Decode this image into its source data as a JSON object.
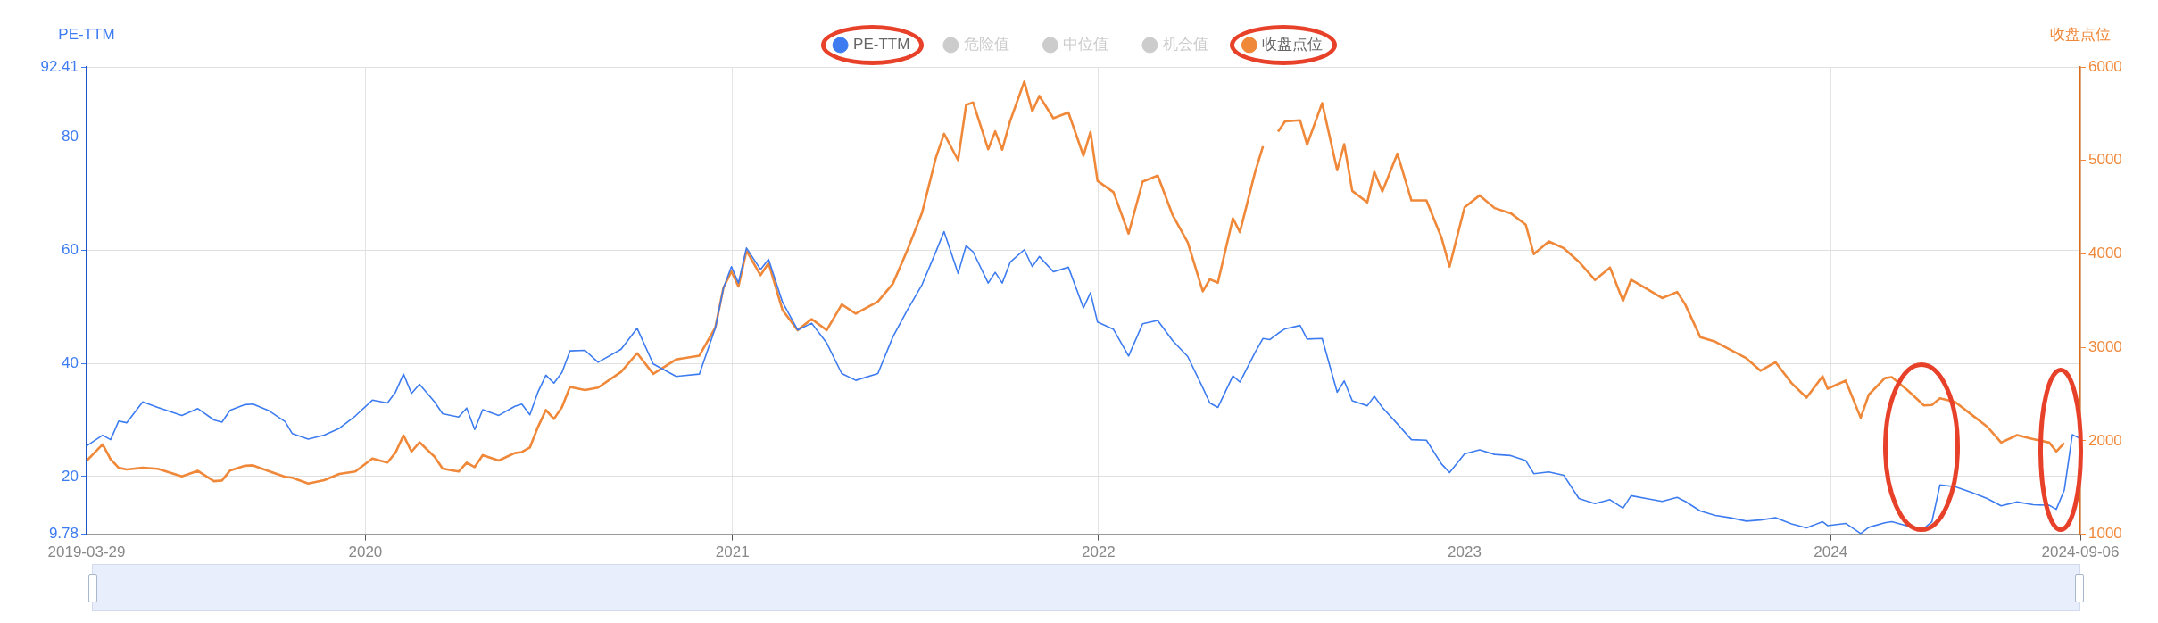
{
  "chart_data": {
    "type": "line",
    "ylabel": "PE-TTM",
    "y2label": "收盘点位",
    "legend": "top",
    "grid": true,
    "marker": "none",
    "line_style": "solid",
    "xlim": [
      "2019-03-29",
      "2024-09-06"
    ],
    "xticks": [
      "2019-03-29",
      "2020",
      "2021",
      "2022",
      "2023",
      "2024",
      "2024-09-06"
    ],
    "ylim": [
      9.78,
      92.41
    ],
    "yticks": [
      9.78,
      20,
      40,
      60,
      80,
      92.41
    ],
    "y2lim": [
      1000,
      6000
    ],
    "y2ticks": [
      1000,
      2000,
      3000,
      4000,
      5000,
      6000
    ],
    "x": [
      "2019-03-29",
      "2019-04-14",
      "2019-04-22",
      "2019-04-30",
      "2019-05-08",
      "2019-05-24",
      "2019-06-08",
      "2019-07-02",
      "2019-07-18",
      "2019-08-03",
      "2019-08-11",
      "2019-08-19",
      "2019-09-03",
      "2019-09-11",
      "2019-09-27",
      "2019-10-13",
      "2019-10-20",
      "2019-11-05",
      "2019-11-21",
      "2019-12-06",
      "2019-12-22",
      "2020-01-08",
      "2020-01-23",
      "2020-01-31",
      "2020-02-08",
      "2020-02-16",
      "2020-02-24",
      "2020-03-10",
      "2020-03-18",
      "2020-04-03",
      "2020-04-11",
      "2020-04-19",
      "2020-04-27",
      "2020-05-13",
      "2020-05-29",
      "2020-06-05",
      "2020-06-13",
      "2020-06-21",
      "2020-06-29",
      "2020-07-07",
      "2020-07-15",
      "2020-07-23",
      "2020-08-07",
      "2020-08-20",
      "2020-09-12",
      "2020-09-28",
      "2020-10-14",
      "2020-11-06",
      "2020-11-29",
      "2020-12-15",
      "2020-12-23",
      "2020-12-31",
      "2021-01-07",
      "2021-01-15",
      "2021-01-29",
      "2021-02-06",
      "2021-02-20",
      "2021-03-07",
      "2021-03-21",
      "2021-04-05",
      "2021-04-20",
      "2021-05-04",
      "2021-05-26",
      "2021-06-10",
      "2021-06-24",
      "2021-07-09",
      "2021-07-23",
      "2021-07-31",
      "2021-08-14",
      "2021-08-22",
      "2021-08-29",
      "2021-09-13",
      "2021-09-20",
      "2021-09-27",
      "2021-10-05",
      "2021-10-19",
      "2021-10-27",
      "2021-11-03",
      "2021-11-17",
      "2021-12-02",
      "2021-12-17",
      "2021-12-24",
      "2021-12-31",
      "2022-01-16",
      "2022-01-31",
      "2022-02-14",
      "2022-03-01",
      "2022-03-16",
      "2022-03-31",
      "2022-04-15",
      "2022-04-22",
      "2022-04-30",
      "2022-05-15",
      "2022-05-22",
      "2022-06-06",
      "2022-06-14",
      "2022-06-21",
      "2022-06-29",
      "2022-07-06",
      "2022-07-21",
      "2022-07-28",
      "2022-08-12",
      "2022-08-27",
      "2022-09-03",
      "2022-09-11",
      "2022-09-26",
      "2022-10-03",
      "2022-10-11",
      "2022-10-26",
      "2022-11-09",
      "2022-11-24",
      "2022-12-09",
      "2022-12-17",
      "2023-01-01",
      "2023-01-16",
      "2023-01-31",
      "2023-02-16",
      "2023-03-03",
      "2023-03-11",
      "2023-03-26",
      "2023-04-10",
      "2023-04-25",
      "2023-05-11",
      "2023-05-26",
      "2023-06-08",
      "2023-06-16",
      "2023-07-01",
      "2023-07-17",
      "2023-08-01",
      "2023-08-09",
      "2023-08-24",
      "2023-09-08",
      "2023-09-23",
      "2023-10-09",
      "2023-10-23",
      "2023-11-07",
      "2023-11-23",
      "2023-12-08",
      "2023-12-24",
      "2023-12-29",
      "2024-01-16",
      "2024-01-31",
      "2024-02-08",
      "2024-02-24",
      "2024-03-02",
      "2024-03-18",
      "2024-04-03",
      "2024-04-11",
      "2024-04-19",
      "2024-05-04",
      "2024-05-20",
      "2024-06-05",
      "2024-06-19",
      "2024-07-05",
      "2024-07-21",
      "2024-08-06",
      "2024-08-13",
      "2024-08-21",
      "2024-08-29",
      "2024-09-06"
    ],
    "series": [
      {
        "name": "PE-TTM",
        "color": "#3d7cf0",
        "values": [
          25.4,
          27.3,
          26.5,
          29.8,
          29.5,
          33.2,
          32.2,
          30.8,
          32.0,
          30.0,
          29.6,
          31.7,
          32.7,
          32.8,
          31.6,
          29.7,
          27.6,
          26.6,
          27.3,
          28.5,
          30.7,
          33.5,
          33.0,
          34.9,
          38.1,
          34.7,
          36.3,
          33.2,
          31.1,
          30.5,
          32.1,
          28.3,
          31.8,
          30.8,
          32.4,
          32.8,
          30.9,
          34.9,
          37.9,
          36.5,
          38.4,
          42.2,
          42.3,
          40.2,
          42.5,
          46.2,
          39.9,
          37.7,
          38.1,
          46.3,
          53.3,
          57.1,
          54.2,
          60.4,
          56.6,
          58.4,
          50.8,
          45.9,
          47.1,
          43.6,
          38.2,
          37.0,
          38.2,
          44.7,
          49.3,
          53.9,
          59.8,
          63.3,
          55.9,
          60.8,
          59.7,
          54.2,
          56.1,
          54.2,
          57.9,
          60.1,
          57.1,
          58.9,
          56.2,
          57.0,
          49.8,
          52.5,
          47.3,
          46.0,
          41.3,
          47.0,
          47.6,
          44.0,
          41.2,
          35.7,
          33.0,
          32.2,
          37.8,
          36.7,
          41.9,
          44.4,
          44.2,
          45.3,
          46.1,
          46.7,
          44.3,
          44.4,
          34.9,
          36.9,
          33.4,
          32.5,
          34.2,
          32.2,
          29.3,
          26.5,
          26.4,
          22.2,
          20.7,
          24.0,
          24.7,
          23.9,
          23.7,
          22.8,
          20.5,
          20.8,
          20.2,
          16.1,
          15.2,
          15.9,
          14.4,
          16.6,
          16.1,
          15.6,
          16.3,
          15.6,
          13.9,
          13.1,
          12.7,
          12.1,
          12.3,
          12.7,
          11.6,
          10.9,
          12.0,
          11.3,
          11.7,
          9.9,
          11.0,
          11.8,
          12.0,
          11.2,
          10.8,
          12.0,
          18.5,
          18.2,
          17.2,
          16.1,
          14.8,
          15.5,
          15.0,
          14.9,
          14.2,
          17.6,
          27.4,
          26.7
        ]
      },
      {
        "name": "危险值",
        "color": "#cccccc",
        "values": [
          null,
          null,
          null,
          null,
          null,
          null,
          null,
          null,
          null,
          null,
          null,
          null,
          null,
          null,
          null,
          null,
          null,
          null,
          null,
          null,
          null,
          null,
          null,
          null,
          null,
          null,
          null,
          null,
          null,
          null,
          null,
          null,
          null,
          null,
          null,
          null,
          null,
          null,
          null,
          null,
          null,
          null,
          null,
          null,
          null,
          null,
          null,
          null,
          null,
          null,
          null,
          null,
          null,
          null,
          null,
          null,
          null,
          null,
          null,
          null,
          null,
          null,
          null,
          null,
          null,
          null,
          null,
          null,
          null,
          null,
          null,
          null,
          null,
          null,
          null,
          null,
          null,
          null,
          null,
          null,
          null,
          null,
          null,
          null,
          null,
          null,
          null,
          null,
          null,
          null,
          null,
          null,
          null,
          null,
          null,
          null,
          null,
          null,
          null,
          null,
          null,
          null,
          null,
          null,
          null,
          null,
          null,
          null,
          null,
          null,
          null,
          null,
          null,
          null,
          null,
          null,
          null,
          null,
          null,
          null,
          null,
          null,
          null,
          null,
          null,
          null,
          null,
          null,
          null,
          null,
          null,
          null,
          null,
          null,
          null,
          null,
          null,
          null,
          null,
          null,
          null,
          null,
          null,
          null,
          null,
          null,
          null,
          null,
          null,
          null,
          null,
          null,
          null,
          null,
          null,
          null,
          null,
          null,
          null,
          null
        ]
      },
      {
        "name": "中位值",
        "color": "#cccccc",
        "values": [
          null,
          null,
          null,
          null,
          null,
          null,
          null,
          null,
          null,
          null,
          null,
          null,
          null,
          null,
          null,
          null,
          null,
          null,
          null,
          null,
          null,
          null,
          null,
          null,
          null,
          null,
          null,
          null,
          null,
          null,
          null,
          null,
          null,
          null,
          null,
          null,
          null,
          null,
          null,
          null,
          null,
          null,
          null,
          null,
          null,
          null,
          null,
          null,
          null,
          null,
          null,
          null,
          null,
          null,
          null,
          null,
          null,
          null,
          null,
          null,
          null,
          null,
          null,
          null,
          null,
          null,
          null,
          null,
          null,
          null,
          null,
          null,
          null,
          null,
          null,
          null,
          null,
          null,
          null,
          null,
          null,
          null,
          null,
          null,
          null,
          null,
          null,
          null,
          null,
          null,
          null,
          null,
          null,
          null,
          null,
          null,
          null,
          null,
          null,
          null,
          null,
          null,
          null,
          null,
          null,
          null,
          null,
          null,
          null,
          null,
          null,
          null,
          null,
          null,
          null,
          null,
          null,
          null,
          null,
          null,
          null,
          null,
          null,
          null,
          null,
          null,
          null,
          null,
          null,
          null,
          null,
          null,
          null,
          null,
          null,
          null,
          null,
          null,
          null,
          null,
          null,
          null,
          null,
          null,
          null,
          null,
          null,
          null,
          null,
          null,
          null,
          null,
          null,
          null,
          null,
          null,
          null,
          null,
          null,
          null
        ]
      },
      {
        "name": "机会值",
        "color": "#cccccc",
        "values": [
          null,
          null,
          null,
          null,
          null,
          null,
          null,
          null,
          null,
          null,
          null,
          null,
          null,
          null,
          null,
          null,
          null,
          null,
          null,
          null,
          null,
          null,
          null,
          null,
          null,
          null,
          null,
          null,
          null,
          null,
          null,
          null,
          null,
          null,
          null,
          null,
          null,
          null,
          null,
          null,
          null,
          null,
          null,
          null,
          null,
          null,
          null,
          null,
          null,
          null,
          null,
          null,
          null,
          null,
          null,
          null,
          null,
          null,
          null,
          null,
          null,
          null,
          null,
          null,
          null,
          null,
          null,
          null,
          null,
          null,
          null,
          null,
          null,
          null,
          null,
          null,
          null,
          null,
          null,
          null,
          null,
          null,
          null,
          null,
          null,
          null,
          null,
          null,
          null,
          null,
          null,
          null,
          null,
          null,
          null,
          null,
          null,
          null,
          null,
          null,
          null,
          null,
          null,
          null,
          null,
          null,
          null,
          null,
          null,
          null,
          null,
          null,
          null,
          null,
          null,
          null,
          null,
          null,
          null,
          null,
          null,
          null,
          null,
          null,
          null,
          null,
          null,
          null,
          null,
          null,
          null,
          null,
          null,
          null,
          null,
          null,
          null,
          null,
          null,
          null,
          null,
          null,
          null,
          null,
          null,
          null,
          null,
          null,
          null,
          null,
          null,
          null,
          null,
          null,
          null,
          null,
          null,
          null,
          null,
          null
        ]
      },
      {
        "name": "收盘点位",
        "color": "#f0883a",
        "axis": "y2",
        "values": [
          1785,
          1962,
          1803,
          1711,
          1693,
          1711,
          1700,
          1619,
          1678,
          1568,
          1575,
          1681,
          1733,
          1737,
          1675,
          1615,
          1605,
          1542,
          1579,
          1645,
          1671,
          1811,
          1767,
          1873,
          2057,
          1884,
          1984,
          1829,
          1703,
          1671,
          1767,
          1719,
          1847,
          1789,
          1869,
          1880,
          1928,
          2146,
          2329,
          2234,
          2359,
          2576,
          2543,
          2569,
          2738,
          2937,
          2716,
          2871,
          2911,
          3213,
          3637,
          3813,
          3651,
          4034,
          3772,
          3902,
          3397,
          3184,
          3302,
          3184,
          3459,
          3360,
          3489,
          3681,
          4030,
          4438,
          5035,
          5285,
          5002,
          5595,
          5620,
          5120,
          5311,
          5115,
          5425,
          5844,
          5525,
          5690,
          5451,
          5513,
          5050,
          5304,
          4781,
          4660,
          4217,
          4773,
          4839,
          4413,
          4122,
          3599,
          3728,
          3691,
          4380,
          4233,
          4869,
          5152,
          null,
          5307,
          5418,
          5429,
          5168,
          5613,
          4895,
          5174,
          4674,
          4552,
          4877,
          4667,
          5072,
          4572,
          4572,
          4173,
          3864,
          4498,
          4626,
          4490,
          4435,
          4313,
          3997,
          4133,
          4060,
          3916,
          3721,
          3854,
          3497,
          3724,
          3630,
          3527,
          3592,
          3459,
          3110,
          3061,
          2974,
          2883,
          2750,
          2841,
          2618,
          2462,
          2690,
          2557,
          2644,
          2246,
          2493,
          2671,
          2682,
          2538,
          2379,
          2383,
          2455,
          2417,
          2284,
          2152,
          1981,
          2061,
          2019,
          1981,
          1886,
          1977,
          null,
          null
        ]
      }
    ]
  }
}
